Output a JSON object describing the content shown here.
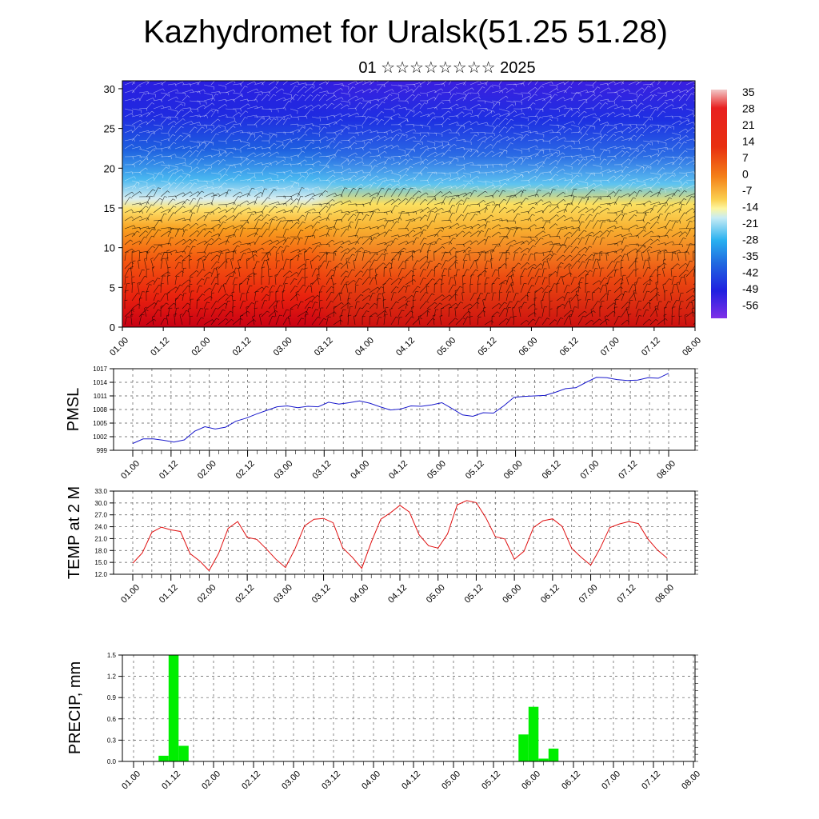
{
  "title": "Kazhydromet for Uralsk(51.25 51.28)",
  "subtitle": "01 ☆☆☆☆☆☆☆☆ 2025",
  "chart_data": [
    {
      "type": "heatmap",
      "title": "Kazhydromet for Uralsk(51.25 51.28)",
      "subtitle": "01 ☆☆☆☆☆☆☆☆ 2025",
      "x_ticks": [
        "01.00",
        "01.12",
        "02.00",
        "02.12",
        "03.00",
        "03.12",
        "04.00",
        "04.12",
        "05.00",
        "05.12",
        "06.00",
        "06.12",
        "07.00",
        "07.12",
        "08.00"
      ],
      "y_ticks": [
        0,
        5,
        10,
        15,
        20,
        25,
        30
      ],
      "ylim": [
        0,
        31
      ],
      "colorbar_labels": [
        "35",
        "28",
        "21",
        "14",
        "7",
        "0",
        "-7",
        "-14",
        "-21",
        "-28",
        "-35",
        "-42",
        "-49",
        "-56"
      ],
      "description_values": "temperature decreasing with height; warmest near surface, coldest above 25",
      "overlay": "wind barbs"
    },
    {
      "type": "line",
      "ylabel": "PMSL",
      "x_ticks": [
        "01.00",
        "01.12",
        "02.00",
        "02.12",
        "03.00",
        "03.12",
        "04.00",
        "04.12",
        "05.00",
        "05.12",
        "06.00",
        "06.12",
        "07.00",
        "07.12",
        "08.00"
      ],
      "y_ticks": [
        "999",
        "1002",
        "1005",
        "1008",
        "1011",
        "1014",
        "1017"
      ],
      "ylim": [
        999,
        1017
      ],
      "color": "#1a1acc",
      "values": [
        1000.5,
        1001.5,
        1001.5,
        1001.2,
        1000.8,
        1001.3,
        1003.2,
        1004.2,
        1003.7,
        1004.1,
        1005.4,
        1006.1,
        1007.0,
        1007.8,
        1008.6,
        1008.8,
        1008.4,
        1008.7,
        1008.6,
        1009.6,
        1009.2,
        1009.5,
        1009.9,
        1009.4,
        1008.6,
        1007.9,
        1008.1,
        1008.8,
        1008.7,
        1009.0,
        1009.5,
        1008.2,
        1006.8,
        1006.5,
        1007.3,
        1007.2,
        1008.8,
        1010.7,
        1010.9,
        1011.0,
        1011.1,
        1011.8,
        1012.6,
        1012.8,
        1014.0,
        1015.1,
        1015.0,
        1014.6,
        1014.4,
        1014.5,
        1015.0,
        1014.9,
        1016.0
      ]
    },
    {
      "type": "line",
      "ylabel": "TEMP at 2 M",
      "x_ticks": [
        "01.00",
        "01.12",
        "02.00",
        "02.12",
        "03.00",
        "03.12",
        "04.00",
        "04.12",
        "05.00",
        "05.12",
        "06.00",
        "06.12",
        "07.00",
        "07.12",
        "08.00"
      ],
      "y_ticks": [
        "12.0",
        "15.0",
        "18.0",
        "21.0",
        "24.0",
        "27.0",
        "30.0",
        "33.0"
      ],
      "ylim": [
        12,
        33
      ],
      "color": "#e01010",
      "values": [
        14.8,
        17.4,
        22.6,
        23.9,
        23.2,
        22.8,
        17.2,
        15.4,
        12.9,
        17.3,
        23.6,
        25.3,
        21.3,
        20.8,
        18.4,
        15.8,
        13.7,
        18.4,
        24.2,
        25.9,
        26.1,
        25.0,
        18.7,
        16.3,
        13.5,
        20.1,
        25.9,
        27.5,
        29.4,
        27.7,
        22.0,
        19.2,
        18.6,
        22.2,
        29.5,
        30.6,
        30.1,
        26.3,
        21.5,
        20.9,
        15.8,
        17.8,
        23.8,
        25.5,
        26.0,
        24.1,
        18.6,
        16.3,
        14.3,
        18.6,
        23.8,
        24.7,
        25.3,
        24.8,
        20.9,
        18.1,
        16.1
      ]
    },
    {
      "type": "bar",
      "ylabel": "PRECIP, mm",
      "x_ticks": [
        "01.00",
        "01.12",
        "02.00",
        "02.12",
        "03.00",
        "03.12",
        "04.00",
        "04.12",
        "05.00",
        "05.12",
        "06.00",
        "06.12",
        "07.00",
        "07.12",
        "08.00"
      ],
      "y_ticks": [
        "0.0",
        "0.3",
        "0.6",
        "0.9",
        "1.2",
        "1.5"
      ],
      "ylim": [
        0,
        1.5
      ],
      "color": "#00ee00",
      "bars": [
        {
          "t": 0.375,
          "value": 0.08
        },
        {
          "t": 0.5,
          "value": 1.5
        },
        {
          "t": 0.625,
          "value": 0.22
        },
        {
          "t": 4.875,
          "value": 0.38
        },
        {
          "t": 5.0,
          "value": 0.77
        },
        {
          "t": 5.125,
          "value": 0.04
        },
        {
          "t": 5.25,
          "value": 0.18
        }
      ]
    }
  ]
}
